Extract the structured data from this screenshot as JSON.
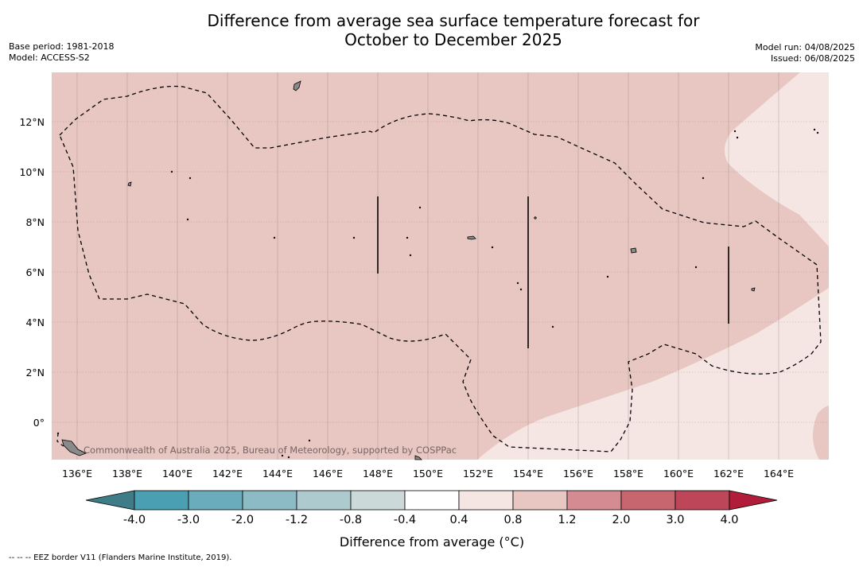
{
  "title_line1": "Difference from average sea surface temperature forecast for",
  "title_line2": "October to December 2025",
  "base_period": "Base period: 1981-2018",
  "model": "Model: ACCESS-S2",
  "model_run": "Model run: 04/08/2025",
  "issued": "Issued: 06/08/2025",
  "lat_labels": [
    "12°N",
    "10°N",
    "8°N",
    "6°N",
    "4°N",
    "2°N",
    "0°"
  ],
  "lon_labels": [
    "136°E",
    "138°E",
    "140°E",
    "142°E",
    "144°E",
    "146°E",
    "148°E",
    "150°E",
    "152°E",
    "154°E",
    "156°E",
    "158°E",
    "160°E",
    "162°E",
    "164°E"
  ],
  "copyright": "Commonwealth of Australia 2025, Bureau of Meteorology, supported by COSPPac",
  "colorbar": {
    "ticks": [
      "-4.0",
      "-3.0",
      "-2.0",
      "-1.2",
      "-0.8",
      "-0.4",
      "0.4",
      "0.8",
      "1.2",
      "2.0",
      "3.0",
      "4.0"
    ],
    "colors": [
      "#4a9fb2",
      "#6aacbb",
      "#8cbac5",
      "#adcbcf",
      "#ccd9d9",
      "#ffffff",
      "#f5e6e3",
      "#e8c6c1",
      "#d58b92",
      "#c86670",
      "#be4659"
    ],
    "under_color": "#3e7d88",
    "over_color": "#b11c3a",
    "label": "Difference from average (°C)"
  },
  "fields": {
    "region_a_color": "#e8c6c1",
    "region_b_color": "#f5e6e3"
  },
  "footer": "--  --  -- EEZ border V11 (Flanders Marine Institute, 2019)."
}
